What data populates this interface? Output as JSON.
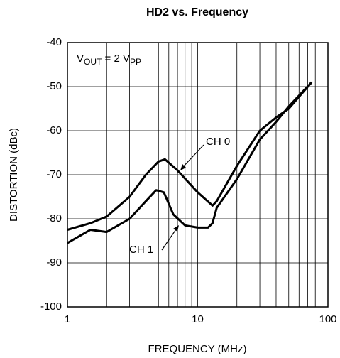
{
  "chart_data": {
    "type": "line",
    "title": "HD2 vs. Frequency",
    "x_label": "FREQUENCY (MHz)",
    "y_label": "DISTORTION (dBc)",
    "vout_label": [
      "V",
      "OUT",
      " = 2 V",
      "PP"
    ],
    "log_x": true,
    "grid": true,
    "xlim": [
      1,
      100
    ],
    "xticks": [
      1,
      10,
      100
    ],
    "xminor": [
      2,
      3,
      4,
      5,
      6,
      7,
      8,
      9,
      20,
      30,
      40,
      50,
      60,
      70,
      80,
      90
    ],
    "ylim": [
      -100,
      -40
    ],
    "yticks": [
      -100,
      -90,
      -80,
      -70,
      -60,
      -50,
      -40
    ],
    "series": [
      {
        "name": "CH 0",
        "color": "#000000",
        "x": [
          1,
          1.5,
          2,
          3,
          4,
          5,
          5.6,
          7,
          10,
          13,
          14,
          20,
          30,
          40,
          50,
          75
        ],
        "values": [
          -82.5,
          -81,
          -79.5,
          -75,
          -70,
          -67,
          -66.5,
          -69,
          -74,
          -77,
          -76,
          -68,
          -60,
          -57,
          -55,
          -49
        ]
      },
      {
        "name": "CH 1",
        "color": "#000000",
        "x": [
          1,
          1.5,
          2,
          3,
          4,
          4.8,
          5.5,
          6.5,
          8,
          10,
          12,
          13,
          14,
          20,
          30,
          40,
          50,
          75
        ],
        "values": [
          -85.5,
          -82.5,
          -83,
          -80,
          -76,
          -73.5,
          -74,
          -79,
          -81.5,
          -82,
          -82,
          -81,
          -77.5,
          -71,
          -62,
          -58,
          -54.5,
          -49
        ]
      }
    ]
  }
}
